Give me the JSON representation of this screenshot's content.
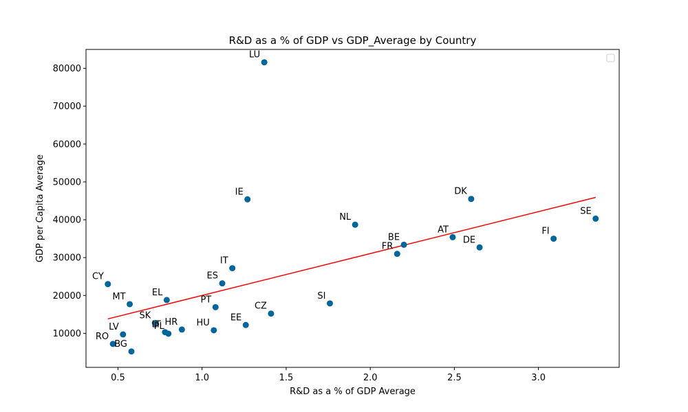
{
  "chart_data": {
    "type": "scatter",
    "title": "R&D as a % of GDP vs GDP_Average by Country",
    "xlabel": "R&D as a % of GDP Average",
    "ylabel": "GDP per Capita Average",
    "xlim": [
      0.31,
      3.48
    ],
    "ylim": [
      1000,
      85000
    ],
    "xticks": [
      0.5,
      1.0,
      1.5,
      2.0,
      2.5,
      3.0
    ],
    "xtick_labels": [
      "0.5",
      "1.0",
      "1.5",
      "2.0",
      "2.5",
      "3.0"
    ],
    "yticks": [
      10000,
      20000,
      30000,
      40000,
      50000,
      60000,
      70000,
      80000
    ],
    "ytick_labels": [
      "10000",
      "20000",
      "30000",
      "40000",
      "50000",
      "60000",
      "70000",
      "80000"
    ],
    "grid": false,
    "legend": "top-right (empty)",
    "colors": {
      "points": "#03669a",
      "trendline": "#ff0000"
    },
    "points": [
      {
        "label": "LU",
        "x": 1.37,
        "y": 81600
      },
      {
        "label": "IE",
        "x": 1.27,
        "y": 45400
      },
      {
        "label": "DK",
        "x": 2.6,
        "y": 45500
      },
      {
        "label": "SE",
        "x": 3.34,
        "y": 40300
      },
      {
        "label": "NL",
        "x": 1.91,
        "y": 38700
      },
      {
        "label": "AT",
        "x": 2.49,
        "y": 35400
      },
      {
        "label": "FI",
        "x": 3.09,
        "y": 35000
      },
      {
        "label": "BE",
        "x": 2.2,
        "y": 33400
      },
      {
        "label": "DE",
        "x": 2.65,
        "y": 32700
      },
      {
        "label": "FR",
        "x": 2.16,
        "y": 31000
      },
      {
        "label": "IT",
        "x": 1.18,
        "y": 27200
      },
      {
        "label": "ES",
        "x": 1.12,
        "y": 23200
      },
      {
        "label": "CY",
        "x": 0.44,
        "y": 23000
      },
      {
        "label": "EL",
        "x": 0.79,
        "y": 18800
      },
      {
        "label": "SI",
        "x": 1.76,
        "y": 17900
      },
      {
        "label": "MT",
        "x": 0.57,
        "y": 17700
      },
      {
        "label": "PT",
        "x": 1.08,
        "y": 16900
      },
      {
        "label": "CZ",
        "x": 1.41,
        "y": 15200
      },
      {
        "label": "SK",
        "x": 0.72,
        "y": 12700
      },
      {
        "label": "EE",
        "x": 1.26,
        "y": 12200
      },
      {
        "label": "HR",
        "x": 0.88,
        "y": 11000
      },
      {
        "label": "HU",
        "x": 1.07,
        "y": 10800
      },
      {
        "label": "LT",
        "x": 0.78,
        "y": 10300
      },
      {
        "label": "PL",
        "x": 0.8,
        "y": 9900
      },
      {
        "label": "LV",
        "x": 0.53,
        "y": 9700
      },
      {
        "label": "RO",
        "x": 0.47,
        "y": 7200
      },
      {
        "label": "BG",
        "x": 0.58,
        "y": 5200
      }
    ],
    "trendline": {
      "x": [
        0.44,
        3.34
      ],
      "y": [
        13800,
        45900
      ]
    }
  }
}
